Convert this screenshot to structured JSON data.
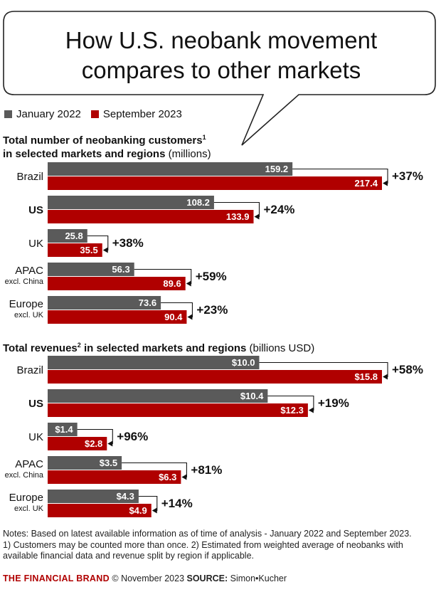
{
  "headline": [
    "How U.S. neobank movement",
    "compares to other markets"
  ],
  "legend": [
    {
      "label": "January 2022",
      "color": "#5a5a5a"
    },
    {
      "label": "September 2023",
      "color": "#b00000"
    }
  ],
  "chart_data": [
    {
      "type": "bar",
      "title_bold_1": "Total number of neobanking customers",
      "title_sup": "1",
      "title_bold_2": "in selected markets and regions",
      "title_rest": " (millions)",
      "max": 217.4,
      "categories": [
        {
          "main": "Brazil",
          "sub": "",
          "bold": false
        },
        {
          "main": "US",
          "sub": "",
          "bold": true
        },
        {
          "main": "UK",
          "sub": "",
          "bold": false
        },
        {
          "main": "APAC",
          "sub": "excl. China",
          "bold": false
        },
        {
          "main": "Europe",
          "sub": "excl. UK",
          "bold": false
        }
      ],
      "series": [
        {
          "name": "January 2022",
          "values": [
            159.2,
            108.2,
            25.8,
            56.3,
            73.6
          ],
          "labels": [
            "159.2",
            "108.2",
            "25.8",
            "56.3",
            "73.6"
          ]
        },
        {
          "name": "September 2023",
          "values": [
            217.4,
            133.9,
            35.5,
            89.6,
            90.4
          ],
          "labels": [
            "217.4",
            "133.9",
            "35.5",
            "89.6",
            "90.4"
          ]
        }
      ],
      "changes": [
        "+37%",
        "+24%",
        "+38%",
        "+59%",
        "+23%"
      ]
    },
    {
      "type": "bar",
      "title_bold_1": "Total revenues",
      "title_sup": "2",
      "title_bold_2": " in selected markets and regions",
      "title_rest": " (billions USD)",
      "max": 15.8,
      "categories": [
        {
          "main": "Brazil",
          "sub": "",
          "bold": false
        },
        {
          "main": "US",
          "sub": "",
          "bold": true
        },
        {
          "main": "UK",
          "sub": "",
          "bold": false
        },
        {
          "main": "APAC",
          "sub": "excl. China",
          "bold": false
        },
        {
          "main": "Europe",
          "sub": "excl. UK",
          "bold": false
        }
      ],
      "series": [
        {
          "name": "January 2022",
          "values": [
            10.0,
            10.4,
            1.4,
            3.5,
            4.3
          ],
          "labels": [
            "$10.0",
            "$10.4",
            "$1.4",
            "$3.5",
            "$4.3"
          ]
        },
        {
          "name": "September 2023",
          "values": [
            15.8,
            12.3,
            2.8,
            6.3,
            4.9
          ],
          "labels": [
            "$15.8",
            "$12.3",
            "$2.8",
            "$6.3",
            "$4.9"
          ]
        }
      ],
      "changes": [
        "+58%",
        "+19%",
        "+96%",
        "+81%",
        "+14%"
      ]
    }
  ],
  "notes": [
    "Notes: Based on latest available information as of time of analysis - January 2022 and September 2023.",
    "1) Customers may be counted more than once. 2) Estimated from weighted average of neobanks with",
    "available financial data and revenue split by region if applicable."
  ],
  "footer": {
    "brand": "THE FINANCIAL BRAND",
    "copyright": " © November 2023 ",
    "source_label": "SOURCE:",
    "source": " Simon•Kucher"
  }
}
